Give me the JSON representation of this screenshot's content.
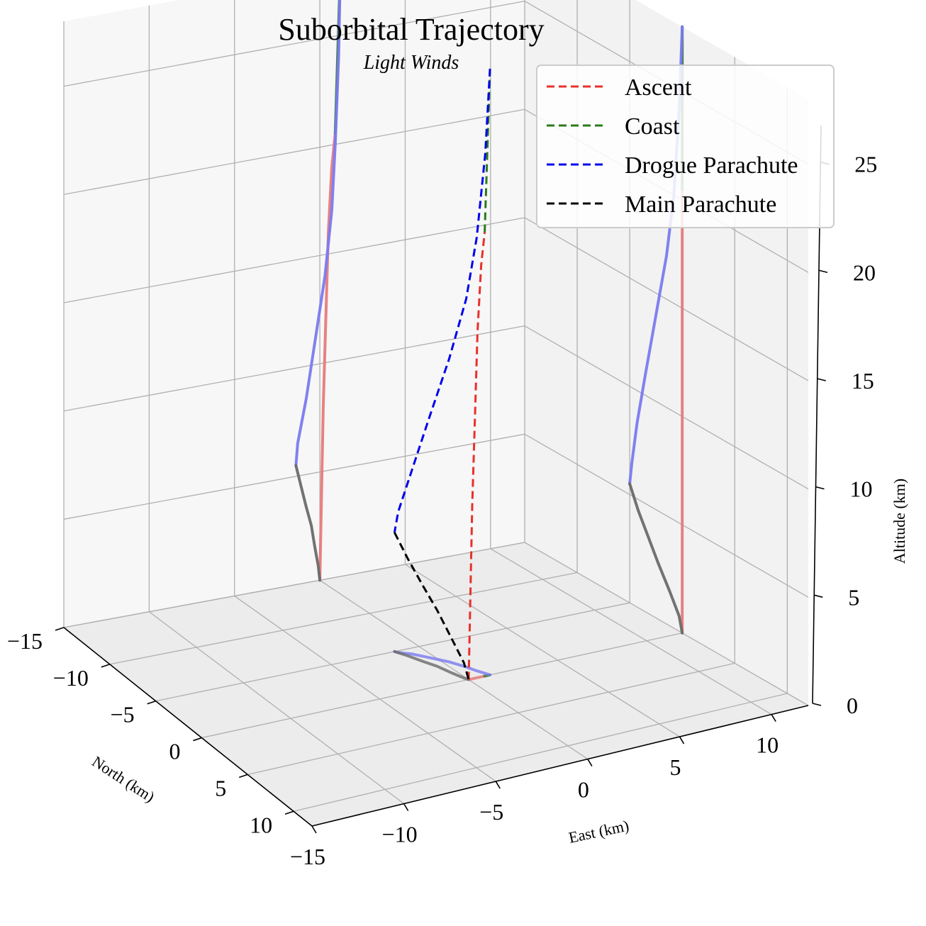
{
  "chart_data": {
    "type": "line",
    "projection": "3d",
    "title": "Suborbital Trajectory",
    "subtitle": "Light Winds",
    "xlabel": "North (km)",
    "ylabel": "East (km)",
    "zlabel": "Altitude (km)",
    "xlim": [
      -15,
      12
    ],
    "ylim": [
      -15,
      12
    ],
    "zlim": [
      0,
      28
    ],
    "xticks": [
      "−15",
      "−10",
      "−5",
      "0",
      "5",
      "10"
    ],
    "xtick_values": [
      -15,
      -10,
      -5,
      0,
      5,
      10
    ],
    "yticks": [
      "−15",
      "−10",
      "−5",
      "0",
      "5",
      "10"
    ],
    "ytick_values": [
      -15,
      -10,
      -5,
      0,
      5,
      10
    ],
    "zticks": [
      "0",
      "5",
      "10",
      "15",
      "20",
      "25"
    ],
    "ztick_values": [
      0,
      5,
      10,
      15,
      20,
      25
    ],
    "grid": true,
    "legend_position": "top-right",
    "series": [
      {
        "name": "Ascent",
        "color": "#e8312a",
        "style": "dashed",
        "x": [
          0,
          0,
          0,
          0,
          0,
          0,
          0
        ],
        "y": [
          0,
          0.1,
          0.2,
          0.35,
          0.5,
          0.7,
          0.9
        ],
        "z": [
          0,
          4,
          8,
          12,
          16,
          19,
          20.5
        ]
      },
      {
        "name": "Coast",
        "color": "#2a7a1a",
        "style": "dashed",
        "x": [
          0,
          0,
          0,
          0
        ],
        "y": [
          0.9,
          1.0,
          1.1,
          1.2
        ],
        "z": [
          20.5,
          23,
          25.5,
          28
        ]
      },
      {
        "name": "Drogue Parachute",
        "color": "#0000ee",
        "style": "dashed",
        "x": [
          0,
          -0.3,
          -0.8,
          -1.5,
          -2.5,
          -3.5,
          -4.3,
          -4.8,
          -5.0
        ],
        "y": [
          1.2,
          1.1,
          0.9,
          0.7,
          0.3,
          -0.3,
          -0.8,
          -1.3,
          -1.4
        ],
        "z": [
          28,
          24,
          20,
          17,
          14,
          11,
          8.5,
          6.5,
          5.5
        ]
      },
      {
        "name": "Main Parachute",
        "color": "#000000",
        "style": "dashed",
        "x": [
          -5.0,
          -4.2,
          -3.2,
          -2.3,
          -1.2,
          -0.3,
          0
        ],
        "y": [
          -1.4,
          -1.1,
          -0.8,
          -0.5,
          -0.3,
          -0.1,
          0
        ],
        "z": [
          5.5,
          4.5,
          3.5,
          2.6,
          1.6,
          0.7,
          0
        ]
      }
    ]
  }
}
